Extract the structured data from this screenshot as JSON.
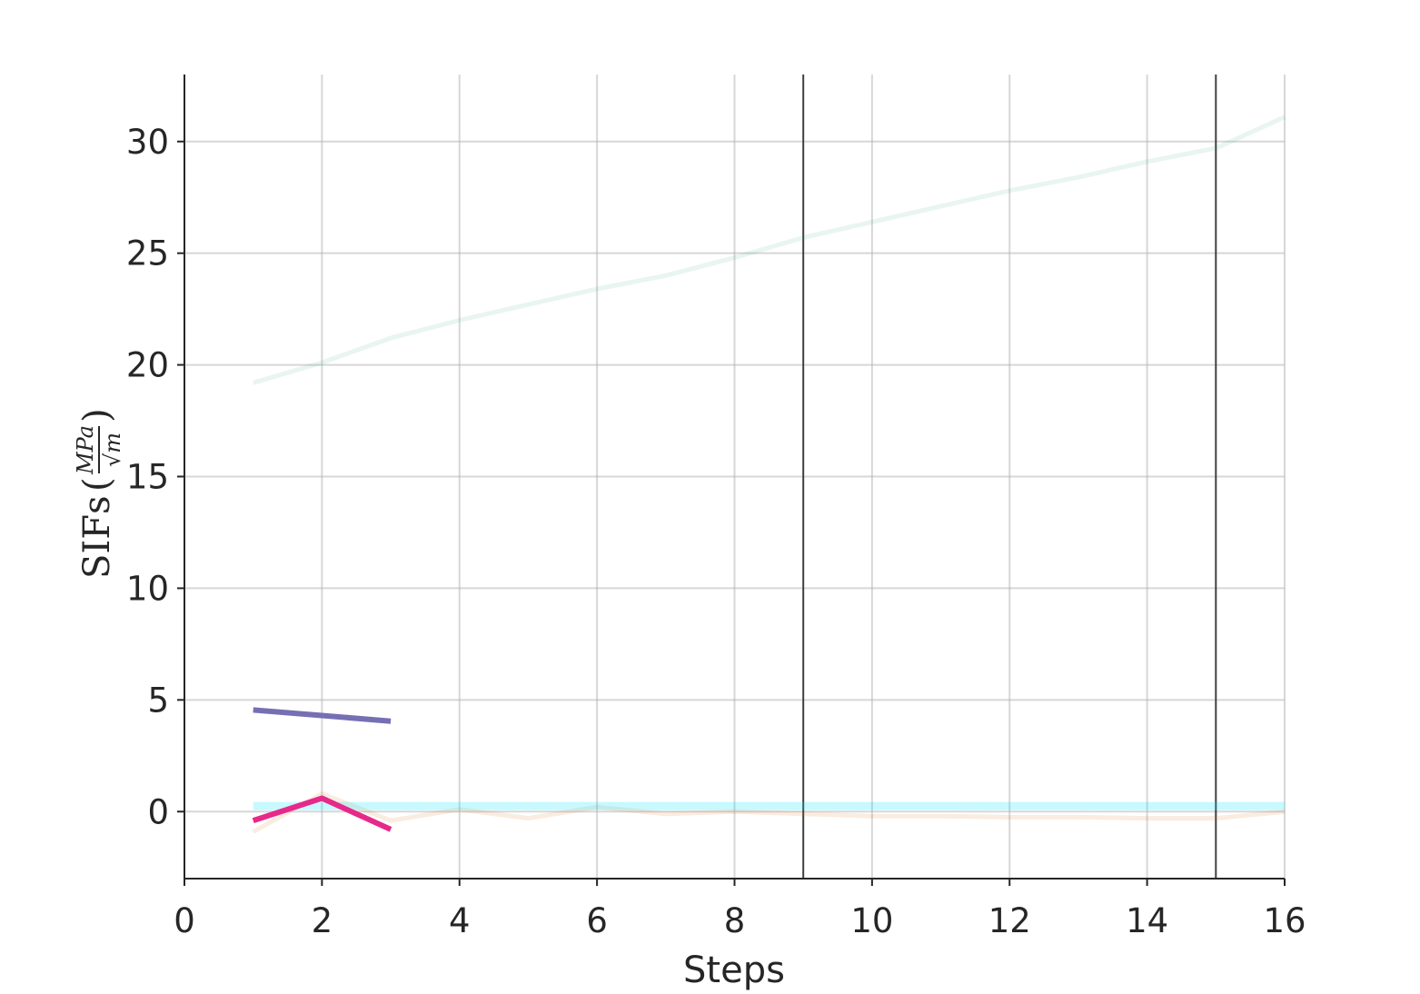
{
  "chart_data": {
    "type": "line",
    "xlabel": "Steps",
    "ylabel": {
      "prefix": "SIFs",
      "open_paren": "(",
      "numerator": "MPa",
      "denominator": "√m",
      "close_paren": ")"
    },
    "xlim": [
      0,
      16
    ],
    "ylim": [
      -3,
      33
    ],
    "xticks": [
      0,
      2,
      4,
      6,
      8,
      10,
      12,
      14,
      16
    ],
    "yticks": [
      0,
      5,
      10,
      15,
      20,
      25,
      30
    ],
    "xtick_labels": [
      "0",
      "2",
      "4",
      "6",
      "8",
      "10",
      "12",
      "14",
      "16"
    ],
    "ytick_labels": [
      "0",
      "5",
      "10",
      "15",
      "20",
      "25",
      "30"
    ],
    "grid": true,
    "vertical_lines": [
      9,
      15
    ],
    "series": [
      {
        "color": "#1b9e77",
        "opacity": 0.1,
        "width": 5,
        "x": [
          1,
          2,
          3,
          4,
          5,
          6,
          7,
          8,
          9,
          10,
          11,
          12,
          13,
          14,
          15,
          16
        ],
        "y": [
          19.2,
          20.1,
          21.2,
          22.0,
          22.7,
          23.4,
          24.0,
          24.8,
          25.7,
          26.4,
          27.1,
          27.8,
          28.4,
          29.1,
          29.7,
          31.1
        ]
      },
      {
        "color": "#d95f02",
        "opacity": 0.12,
        "width": 5,
        "x": [
          1,
          2,
          3,
          4,
          5,
          6,
          7,
          8,
          9,
          10,
          11,
          12,
          13,
          14,
          15,
          16
        ],
        "y": [
          -0.9,
          0.8,
          -0.4,
          0.1,
          -0.3,
          0.2,
          -0.1,
          0.0,
          -0.1,
          -0.2,
          -0.2,
          -0.25,
          -0.25,
          -0.3,
          -0.3,
          0.0
        ]
      },
      {
        "color": "#00e5ff",
        "opacity": 0.22,
        "width": 9,
        "x": [
          1,
          16
        ],
        "y": [
          0.25,
          0.25
        ]
      },
      {
        "color": "#7570b3",
        "opacity": 1,
        "width": 6,
        "x": [
          1,
          2,
          3
        ],
        "y": [
          4.55,
          4.3,
          4.05
        ]
      },
      {
        "color": "#e7298a",
        "opacity": 1,
        "width": 6,
        "x": [
          1,
          2,
          3
        ],
        "y": [
          -0.4,
          0.6,
          -0.8
        ]
      }
    ]
  }
}
